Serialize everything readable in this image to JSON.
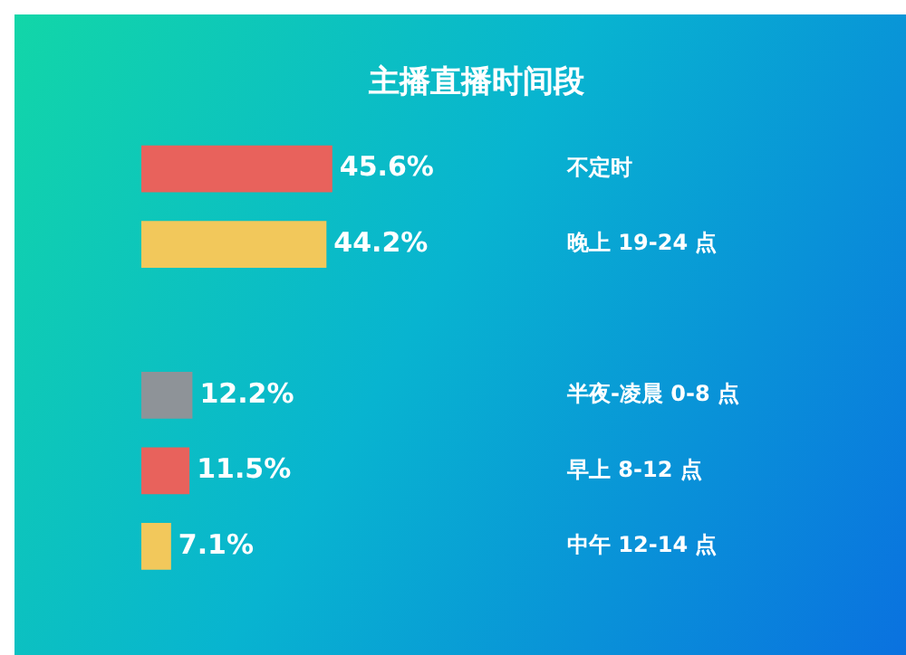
{
  "chart_data": {
    "type": "bar",
    "orientation": "horizontal",
    "title": "主播直播时间段",
    "categories": [
      "不定时",
      "晚上 19-24 点",
      null,
      "半夜-凌晨 0-8 点",
      "早上 8-12 点",
      "中午 12-14 点"
    ],
    "values": [
      45.6,
      44.2,
      null,
      12.2,
      11.5,
      7.1
    ],
    "colors": [
      "#e8625c",
      "#f2c85b",
      "#3a3d42",
      "#8e9398",
      "#e8625c",
      "#f2c85b"
    ],
    "value_labels": [
      "45.6%",
      "44.2%",
      null,
      "12.2%",
      "11.5%",
      "7.1%"
    ],
    "grid": false,
    "legend": false,
    "tick_labels": "y"
  }
}
